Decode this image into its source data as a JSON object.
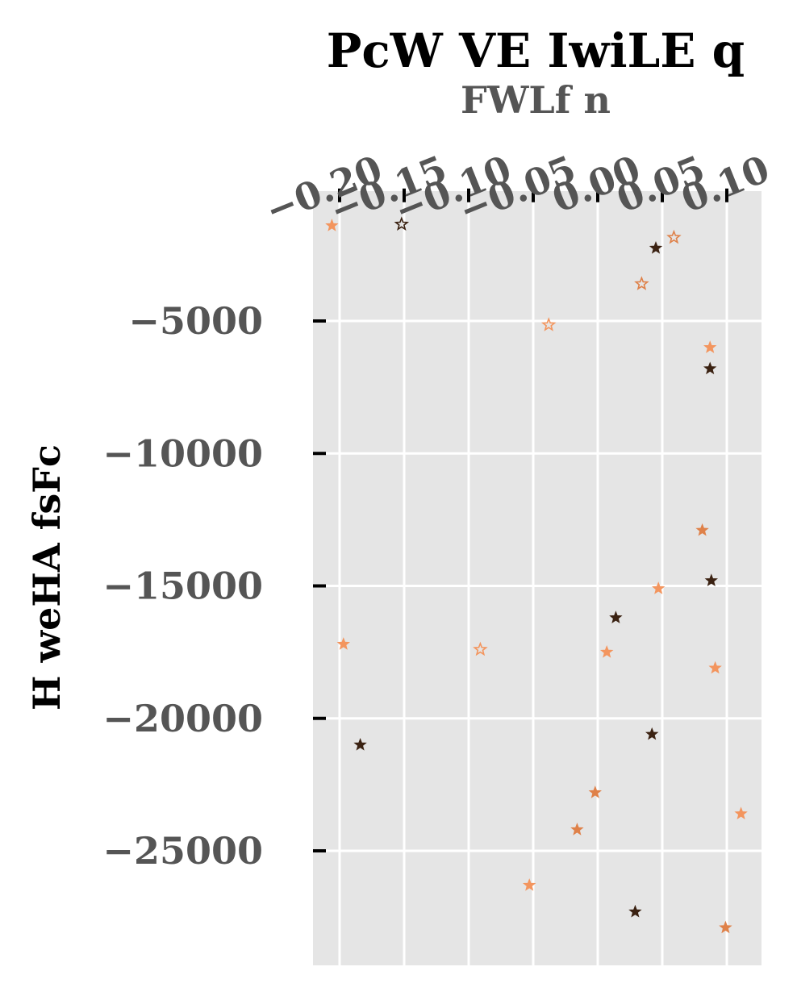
{
  "chart_data": {
    "type": "scatter",
    "title": "PcW VE  IwiLE q",
    "xlabel": "FWLf n",
    "ylabel": "H weHA fsFc",
    "x_axis_position": "top",
    "xlim": [
      -0.21,
      0.13
    ],
    "ylim": [
      -28500,
      1200
    ],
    "xticks": [
      -0.2,
      -0.15,
      -0.1,
      -0.05,
      0.0,
      0.05,
      0.1
    ],
    "xtick_labels": [
      "−0.20",
      "−0.15",
      "−0.10",
      "−0.05",
      "0.00",
      "0.05",
      "0.10"
    ],
    "yticks": [
      -5000,
      -10000,
      -15000,
      -20000,
      -25000
    ],
    "ytick_labels": [
      "−5000",
      "−10000",
      "−15000",
      "−20000",
      "−25000"
    ],
    "grid": true,
    "background": "#e5e5e5",
    "marker": "star",
    "colors": {
      "dark": "#3b2212",
      "mid": "#df8149",
      "light": "#f3955e"
    },
    "series": [
      {
        "color": "#3b2212",
        "points": [
          {
            "x": -0.152,
            "y": -1350,
            "filled": false
          },
          {
            "x": 0.045,
            "y": -2250,
            "filled": true
          },
          {
            "x": 0.087,
            "y": -6800,
            "filled": true
          },
          {
            "x": 0.088,
            "y": -14800,
            "filled": true
          },
          {
            "x": 0.014,
            "y": -16200,
            "filled": true
          },
          {
            "x": 0.042,
            "y": -20600,
            "filled": true
          },
          {
            "x": -0.184,
            "y": -21000,
            "filled": true
          },
          {
            "x": 0.029,
            "y": -27300,
            "filled": true
          }
        ]
      },
      {
        "color": "#df8149",
        "points": [
          {
            "x": 0.059,
            "y": -1850,
            "filled": false
          },
          {
            "x": 0.034,
            "y": -3600,
            "filled": false
          },
          {
            "x": 0.081,
            "y": -12900,
            "filled": true
          },
          {
            "x": -0.002,
            "y": -22800,
            "filled": true
          },
          {
            "x": -0.016,
            "y": -24200,
            "filled": true
          },
          {
            "x": 0.099,
            "y": -27900,
            "filled": true
          }
        ]
      },
      {
        "color": "#f3955e",
        "points": [
          {
            "x": -0.206,
            "y": -1400,
            "filled": true
          },
          {
            "x": -0.038,
            "y": -5150,
            "filled": false
          },
          {
            "x": 0.087,
            "y": -6000,
            "filled": true
          },
          {
            "x": 0.047,
            "y": -15100,
            "filled": true
          },
          {
            "x": -0.197,
            "y": -17200,
            "filled": true
          },
          {
            "x": -0.091,
            "y": -17400,
            "filled": false
          },
          {
            "x": 0.007,
            "y": -17500,
            "filled": true
          },
          {
            "x": 0.091,
            "y": -18100,
            "filled": true
          },
          {
            "x": -0.053,
            "y": -26300,
            "filled": true
          },
          {
            "x": 0.111,
            "y": -23600,
            "filled": true
          }
        ]
      }
    ]
  }
}
